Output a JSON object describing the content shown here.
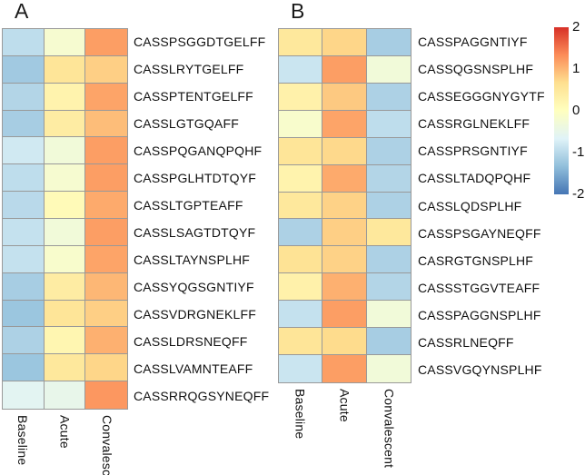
{
  "figure": {
    "panel_a_label": "A",
    "panel_b_label": "B"
  },
  "colorbar": {
    "tick_labels": [
      "2",
      "1",
      "0",
      "-1",
      "-2"
    ],
    "tick_values": [
      2,
      1,
      0,
      -1,
      -2
    ],
    "min": -2,
    "max": 2,
    "gradient_colors_top_to_bottom": [
      "#d73027",
      "#fc8d59",
      "#fee090",
      "#ffffbf",
      "#e0f3f8",
      "#91bfdb",
      "#4575b4"
    ]
  },
  "chart_data": [
    {
      "type": "heatmap",
      "panel": "A",
      "columns": [
        "Baseline",
        "Acute",
        "Convalescent"
      ],
      "rows": [
        "CASSPSGGDTGELFF",
        "CASSLRYTGELFF",
        "CASSPTENTGELFF",
        "CASSLGTGQAFF",
        "CASSPQGANQPQHF",
        "CASSPGLHTDTQYF",
        "CASSLTGPTEAFF",
        "CASSLSAGTDTQYF",
        "CASSLTAYNSPLHF",
        "CASSYQGSGNTIYF",
        "CASSVDRGNEKLFF",
        "CASSLDRSNEQFF",
        "CASSLVAMNTEAFF",
        "CASSRRQGSYNEQFF"
      ],
      "values": [
        [
          -0.95,
          -0.2,
          1.2
        ],
        [
          -1.2,
          0.55,
          0.8
        ],
        [
          -1.05,
          0.25,
          1.15
        ],
        [
          -1.15,
          0.4,
          0.95
        ],
        [
          -0.8,
          -0.3,
          1.2
        ],
        [
          -0.95,
          -0.2,
          1.2
        ],
        [
          -1.0,
          0.1,
          1.1
        ],
        [
          -0.9,
          -0.3,
          1.2
        ],
        [
          -0.9,
          -0.15,
          1.15
        ],
        [
          -1.15,
          0.4,
          1.0
        ],
        [
          -1.25,
          0.55,
          0.8
        ],
        [
          -1.1,
          0.2,
          1.05
        ],
        [
          -1.25,
          0.5,
          0.75
        ],
        [
          -0.6,
          -0.5,
          1.25
        ]
      ],
      "zlim": [
        -2,
        2
      ],
      "colorscale": "RdYlBu reversed (blue = low, red = high)",
      "grid": true,
      "border_color": "#999999"
    },
    {
      "type": "heatmap",
      "panel": "B",
      "columns": [
        "Baseline",
        "Acute",
        "Convalescent"
      ],
      "rows": [
        "CASSPAGGNTIYF",
        "CASSQGSNSPLHF",
        "CASSEGGGNYGYTF",
        "CASSRGLNEKLFF",
        "CASSPRSGNTIYF",
        "CASSLTADQPQHF",
        "CASSLQDSPLHF",
        "CASSPSGAYNEQFF",
        "CASRGTGNSPLHF",
        "CASSSTGGVTEAFF",
        "CASSPAGGNSPLHF",
        "CASSRLNEQFF",
        "CASSVGQYNSPLHF"
      ],
      "values": [
        [
          0.5,
          0.75,
          -1.15
        ],
        [
          -0.85,
          1.2,
          -0.3
        ],
        [
          0.3,
          0.85,
          -1.1
        ],
        [
          -0.15,
          1.15,
          -0.95
        ],
        [
          0.55,
          0.72,
          -1.1
        ],
        [
          0.25,
          1.1,
          -1.05
        ],
        [
          0.5,
          0.78,
          -1.1
        ],
        [
          -1.1,
          0.8,
          0.5
        ],
        [
          0.6,
          0.78,
          -1.1
        ],
        [
          0.3,
          1.05,
          -1.05
        ],
        [
          -0.9,
          1.2,
          -0.3
        ],
        [
          0.55,
          0.7,
          -1.15
        ],
        [
          -0.85,
          1.2,
          -0.3
        ]
      ],
      "zlim": [
        -2,
        2
      ],
      "colorscale": "RdYlBu reversed (blue = low, red = high)",
      "grid": true,
      "border_color": "#999999"
    }
  ]
}
